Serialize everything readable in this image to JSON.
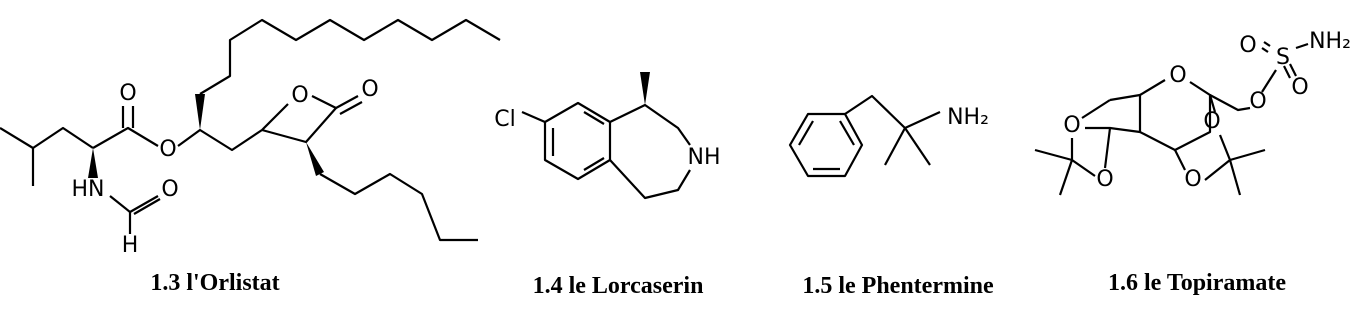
{
  "compounds": [
    {
      "caption": "1.3 l'Orlistat",
      "atoms": [
        "O",
        "O",
        "O",
        "O",
        "HN",
        "O",
        "H"
      ]
    },
    {
      "caption": "1.4 le Lorcaserin",
      "atoms": [
        "Cl",
        "NH"
      ]
    },
    {
      "caption": "1.5 le Phentermine",
      "atoms": [
        "NH₂"
      ]
    },
    {
      "caption": "1.6 le Topiramate",
      "atoms": [
        "O",
        "S",
        "NH₂",
        "O",
        "O",
        "O",
        "O",
        "O",
        "O",
        "O"
      ]
    }
  ]
}
